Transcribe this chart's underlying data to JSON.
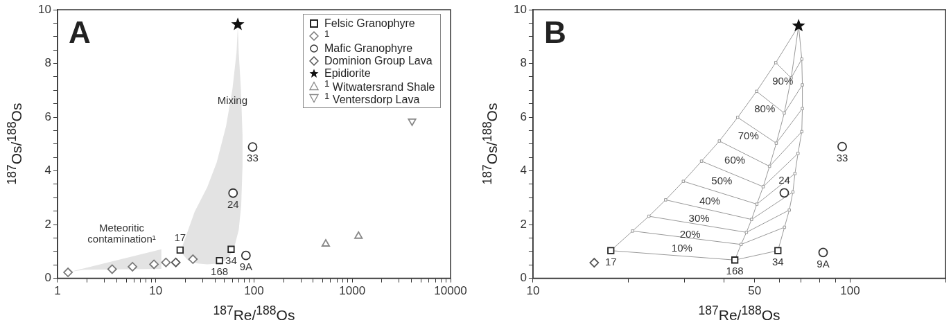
{
  "chart_data": [
    {
      "type": "scatter",
      "title": "A",
      "xlabel": "$^{187}$Re/$^{188}$Os",
      "ylabel": "$^{187}$Os/$^{188}$Os",
      "log": "x",
      "grid": false,
      "legend": "top right",
      "xlim": [
        1,
        10000
      ],
      "ylim": [
        0,
        10
      ],
      "xticks": [
        1,
        {
          "value": 2,
          "label": null
        },
        {
          "value": 3,
          "label": null
        },
        {
          "value": 4,
          "label": null
        },
        {
          "value": 5,
          "label": null
        },
        {
          "value": 6,
          "label": null
        },
        {
          "value": 7,
          "label": null
        },
        {
          "value": 8,
          "label": null
        },
        {
          "value": 9,
          "label": null
        },
        10,
        {
          "value": 20,
          "label": null
        },
        {
          "value": 30,
          "label": null
        },
        {
          "value": 40,
          "label": null
        },
        {
          "value": 50,
          "label": null
        },
        {
          "value": 60,
          "label": null
        },
        {
          "value": 70,
          "label": null
        },
        {
          "value": 80,
          "label": null
        },
        {
          "value": 90,
          "label": null
        },
        100,
        {
          "value": 200,
          "label": null
        },
        {
          "value": 300,
          "label": null
        },
        {
          "value": 400,
          "label": null
        },
        {
          "value": 500,
          "label": null
        },
        {
          "value": 600,
          "label": null
        },
        {
          "value": 700,
          "label": null
        },
        {
          "value": 800,
          "label": null
        },
        {
          "value": 900,
          "label": null
        },
        1000,
        {
          "value": 2000,
          "label": null
        },
        {
          "value": 3000,
          "label": null
        },
        {
          "value": 4000,
          "label": null
        },
        {
          "value": 5000,
          "label": null
        },
        {
          "value": 6000,
          "label": null
        },
        {
          "value": 7000,
          "label": null
        },
        {
          "value": 8000,
          "label": null
        },
        {
          "value": 9000,
          "label": null
        },
        10000
      ],
      "yticks": [
        0,
        {
          "value": 0.5,
          "label": null
        },
        {
          "value": 1,
          "label": null
        },
        {
          "value": 1.5,
          "label": null
        },
        2,
        {
          "value": 2.5,
          "label": null
        },
        {
          "value": 3,
          "label": null
        },
        {
          "value": 3.5,
          "label": null
        },
        4,
        {
          "value": 4.5,
          "label": null
        },
        {
          "value": 5,
          "label": null
        },
        {
          "value": 5.5,
          "label": null
        },
        6,
        {
          "value": 6.5,
          "label": null
        },
        {
          "value": 7,
          "label": null
        },
        {
          "value": 7.5,
          "label": null
        },
        8,
        {
          "value": 8.5,
          "label": null
        },
        {
          "value": 9,
          "label": null
        },
        {
          "value": 9.5,
          "label": null
        },
        10
      ],
      "annotations": [
        {
          "text": "17",
          "x": 17.7,
          "y": 1.05
        },
        {
          "text": "34",
          "x": 58.5,
          "y": 1.08
        },
        {
          "text": "168",
          "x": 44.5,
          "y": 0.66
        },
        {
          "text": "33",
          "x": 96.8,
          "y": 4.89
        },
        {
          "text": "24",
          "x": 61.2,
          "y": 3.17
        },
        {
          "text": "9A",
          "x": 82.8,
          "y": 0.85
        },
        {
          "text": "Mixing",
          "x": 60.3,
          "y": 7.04
        },
        {
          "text": "Meteoritic contamination¹",
          "x": 11.4,
          "y": 1.08
        }
      ],
      "series": [
        {
          "type": "area",
          "color": "#e3e3e3",
          "x": [
            68.4,
            69.9,
            73.6,
            76.4,
            76.4,
            74.1,
            69.9,
            62.6,
            54,
            44.9,
            33.4,
            26.7,
            21.4,
            18.8,
            18.8,
            24.9,
            33.4,
            41.7,
            52,
            60.3,
            66.4,
            68.4
          ],
          "values": [
            9.37,
            8.41,
            7.04,
            5.33,
            4.19,
            2.71,
            1.8,
            1.12,
            0.72,
            0.55,
            0.52,
            0.55,
            0.66,
            0.89,
            1.23,
            2.48,
            3.39,
            4.31,
            5.67,
            7.04,
            8.41,
            9.37
          ]
        },
        {
          "type": "area",
          "color": "#e3e3e3",
          "x": [
            1.34,
            11.4,
            11.4,
            1.87,
            1.34
          ],
          "values": [
            0.24,
            1.08,
            0.35,
            0.32,
            0.24
          ]
        },
        {
          "name": "Felsic Granophyre",
          "marker": "square",
          "color": "#222222",
          "x": [
            17.7,
            44.5,
            58.5
          ],
          "values": [
            1.05,
            0.66,
            1.08
          ]
        },
        {
          "name": "$^{1}$",
          "marker": "diamond",
          "color": "#777777",
          "x": [
            1.28,
            3.6,
            5.8,
            9.6,
            12.7,
            23.9
          ],
          "values": [
            0.22,
            0.34,
            0.43,
            0.52,
            0.59,
            0.71
          ]
        },
        {
          "name": "Mafic Granophyre",
          "marker": "circle",
          "color": "#333333",
          "x": [
            96.8,
            61.2,
            82.8
          ],
          "values": [
            4.89,
            3.17,
            0.85
          ]
        },
        {
          "name": "Dominion Group Lava",
          "marker": "diamond",
          "color": "#555555",
          "x": [
            16
          ],
          "values": [
            0.59
          ]
        },
        {
          "name": "Epidiorite",
          "marker": "star",
          "color": "#111111",
          "x": [
            68.4
          ],
          "values": [
            9.45
          ]
        },
        {
          "name": "$^{1}$ Witwatersrand Shale",
          "marker": "triangle",
          "color": "#888888",
          "x": [
            537,
            1157
          ],
          "values": [
            1.28,
            1.57
          ]
        },
        {
          "name": "$^{1}$ Ventersdorp Lava",
          "marker": "triangle-down",
          "color": "#888888",
          "x": [
            4060
          ],
          "values": [
            5.85
          ]
        }
      ]
    },
    {
      "type": "scatter",
      "title": "B",
      "xlabel": "$^{187}$Re/$^{188}$Os",
      "ylabel": "$^{187}$Os/$^{188}$Os",
      "log": "x",
      "grid": false,
      "xlim": [
        10,
        200
      ],
      "ylim": [
        0,
        10
      ],
      "xticks": [
        10,
        {
          "value": 20,
          "label": null
        },
        {
          "value": 30,
          "label": null
        },
        {
          "value": 40,
          "label": null
        },
        50,
        {
          "value": 60,
          "label": null
        },
        {
          "value": 70,
          "label": null
        },
        {
          "value": 80,
          "label": null
        },
        {
          "value": 90,
          "label": null
        },
        100,
        {
          "value": 200,
          "label": null
        }
      ],
      "yticks": [
        0,
        {
          "value": 0.5,
          "label": null
        },
        {
          "value": 1,
          "label": null
        },
        {
          "value": 1.5,
          "label": null
        },
        2,
        {
          "value": 2.5,
          "label": null
        },
        {
          "value": 3,
          "label": null
        },
        {
          "value": 3.5,
          "label": null
        },
        4,
        {
          "value": 4.5,
          "label": null
        },
        {
          "value": 5,
          "label": null
        },
        {
          "value": 5.5,
          "label": null
        },
        6,
        {
          "value": 6.5,
          "label": null
        },
        {
          "value": 7,
          "label": null
        },
        {
          "value": 7.5,
          "label": null
        },
        8,
        {
          "value": 8.5,
          "label": null
        },
        {
          "value": 9,
          "label": null
        },
        {
          "value": 9.5,
          "label": null
        },
        10
      ],
      "annotations": [
        {
          "text": "17",
          "x": 17.6,
          "y": 1.03
        },
        {
          "text": "168",
          "x": 43.3,
          "y": 0.68
        },
        {
          "text": "34",
          "x": 59.2,
          "y": 1.03
        },
        {
          "text": "24",
          "x": 62,
          "y": 3.18
        },
        {
          "text": "33",
          "x": 94.4,
          "y": 4.9
        },
        {
          "text": "9A",
          "x": 82.2,
          "y": 0.96
        },
        {
          "text": "10%",
          "x": 29.5,
          "y": 1.53
        },
        {
          "text": "20%",
          "x": 31.3,
          "y": 2.06
        },
        {
          "text": "30%",
          "x": 33.4,
          "y": 2.64
        },
        {
          "text": "40%",
          "x": 36.1,
          "y": 3.3
        },
        {
          "text": "50%",
          "x": 39.4,
          "y": 4.05
        },
        {
          "text": "60%",
          "x": 43.3,
          "y": 4.82
        },
        {
          "text": "70%",
          "x": 47.8,
          "y": 5.72
        },
        {
          "text": "80%",
          "x": 53.8,
          "y": 6.72
        },
        {
          "text": "90%",
          "x": 61.3,
          "y": 7.77
        }
      ],
      "series": [
        {
          "type": "line",
          "marker": "square",
          "color": "#999999",
          "x": [
            17.6,
            20.6,
            23.2,
            26.2,
            29.8,
            34,
            38.7,
            44.2,
            50.7,
            58.3,
            68.8
          ],
          "values": [
            1.03,
            1.76,
            2.31,
            2.92,
            3.61,
            4.36,
            5.11,
            5.99,
            6.96,
            8.03,
            9.4
          ]
        },
        {
          "type": "line",
          "marker": "square",
          "color": "#999999",
          "x": [
            43.3,
            45.3,
            47.1,
            48.9,
            50.8,
            53.2,
            55.7,
            58.5,
            62,
            65.2,
            68.8
          ],
          "values": [
            0.68,
            1.26,
            1.71,
            2.19,
            2.76,
            3.41,
            4.17,
            5.03,
            6.15,
            7.46,
            9.4
          ]
        },
        {
          "type": "line",
          "marker": "square",
          "color": "#999999",
          "x": [
            59.2,
            62.1,
            64.3,
            66,
            67,
            68.5,
            70.4,
            70.7,
            70.7,
            70.4,
            68.8
          ],
          "values": [
            1.03,
            1.9,
            2.54,
            3.21,
            3.9,
            4.65,
            5.46,
            6.32,
            7.2,
            8.16,
            9.4
          ]
        },
        {
          "type": "line",
          "marker": "none",
          "color": "#999999",
          "x": [
            17.6,
            43.3,
            59.2
          ],
          "values": [
            1.03,
            0.68,
            1.03
          ]
        },
        {
          "type": "line",
          "marker": "none",
          "color": "#999999",
          "x": [
            20.6,
            45.3,
            62.1
          ],
          "values": [
            1.76,
            1.26,
            1.9
          ]
        },
        {
          "type": "line",
          "marker": "none",
          "color": "#999999",
          "x": [
            23.2,
            47.1,
            64.3
          ],
          "values": [
            2.31,
            1.71,
            2.54
          ]
        },
        {
          "type": "line",
          "marker": "none",
          "color": "#999999",
          "x": [
            26.2,
            48.9,
            66
          ],
          "values": [
            2.92,
            2.19,
            3.21
          ]
        },
        {
          "type": "line",
          "marker": "none",
          "color": "#999999",
          "x": [
            29.8,
            50.8,
            67
          ],
          "values": [
            3.61,
            2.76,
            3.9
          ]
        },
        {
          "type": "line",
          "marker": "none",
          "color": "#999999",
          "x": [
            34,
            53.2,
            68.5
          ],
          "values": [
            4.36,
            3.41,
            4.65
          ]
        },
        {
          "type": "line",
          "marker": "none",
          "color": "#999999",
          "x": [
            38.7,
            55.7,
            70.4
          ],
          "values": [
            5.11,
            4.17,
            5.46
          ]
        },
        {
          "type": "line",
          "marker": "none",
          "color": "#999999",
          "x": [
            44.2,
            58.5,
            70.7
          ],
          "values": [
            5.99,
            5.03,
            6.32
          ]
        },
        {
          "type": "line",
          "marker": "none",
          "color": "#999999",
          "x": [
            50.7,
            62,
            70.7
          ],
          "values": [
            6.96,
            6.15,
            7.2
          ]
        },
        {
          "type": "line",
          "marker": "none",
          "color": "#999999",
          "x": [
            58.3,
            65.2,
            70.4
          ],
          "values": [
            8.03,
            7.46,
            8.16
          ]
        },
        {
          "marker": "square",
          "color": "#222222",
          "x": [
            17.6,
            43.3,
            59.2
          ],
          "values": [
            1.03,
            0.68,
            1.03
          ]
        },
        {
          "marker": "diamond",
          "color": "#555555",
          "x": [
            15.6
          ],
          "values": [
            0.58
          ]
        },
        {
          "marker": "circle",
          "color": "#333333",
          "x": [
            62,
            94.4,
            82.2
          ],
          "values": [
            3.18,
            4.9,
            0.96
          ]
        },
        {
          "marker": "star",
          "color": "#111111",
          "x": [
            68.8
          ],
          "values": [
            9.4
          ]
        }
      ]
    }
  ]
}
